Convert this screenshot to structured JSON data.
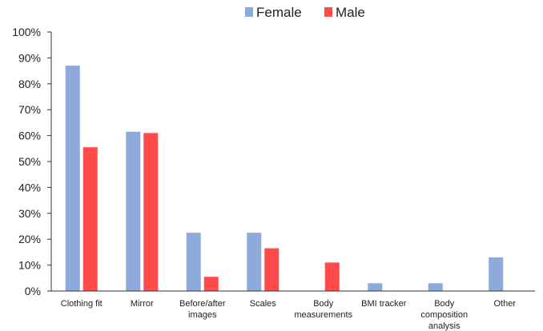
{
  "chart_data": {
    "type": "bar",
    "title": "",
    "xlabel": "",
    "ylabel": "",
    "categories": [
      [
        "Clothing fit"
      ],
      [
        "Mirror"
      ],
      [
        "Before/after",
        "images"
      ],
      [
        "Scales"
      ],
      [
        "Body",
        "measurements"
      ],
      [
        "BMI tracker"
      ],
      [
        "Body",
        "composition",
        "analysis"
      ],
      [
        "Other"
      ]
    ],
    "series": [
      {
        "name": "Female",
        "color": "#8eaadb",
        "values": [
          87,
          61.5,
          22.5,
          22.5,
          0,
          3,
          3,
          13
        ]
      },
      {
        "name": "Male",
        "color": "#ff4b4b",
        "values": [
          55.5,
          61,
          5.5,
          16.5,
          11,
          0,
          0,
          0
        ]
      }
    ],
    "ylim": [
      0,
      100
    ],
    "yticks": [
      0,
      10,
      20,
      30,
      40,
      50,
      60,
      70,
      80,
      90,
      100
    ],
    "ytick_suffix": "%",
    "grid": false,
    "legend_position": "top-center"
  }
}
